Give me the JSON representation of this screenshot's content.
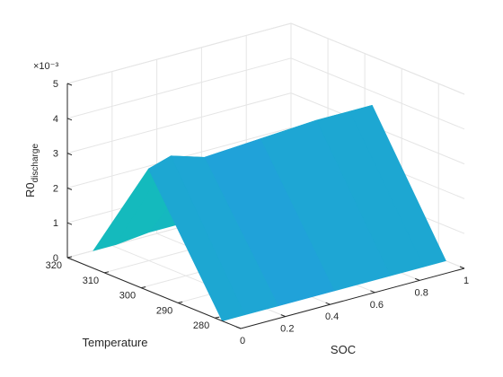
{
  "chart_data": {
    "type": "surface",
    "view": "3d",
    "xlabel": "SOC",
    "ylabel": "Temperature",
    "zlabel_main": "R0",
    "zlabel_sub": "discharge",
    "z_exponent": "×10⁻³",
    "xlim": [
      0,
      1
    ],
    "ylim": [
      273,
      320
    ],
    "zlim": [
      0,
      0.005
    ],
    "x_ticks": [
      "0",
      "0.2",
      "0.4",
      "0.6",
      "0.8",
      "1"
    ],
    "y_ticks": [
      "280",
      "290",
      "300",
      "310",
      "320"
    ],
    "z_ticks": [
      "0",
      "1",
      "2",
      "3",
      "4",
      "5"
    ],
    "grid": true,
    "colormap": "parula",
    "soc": [
      0,
      0.1,
      0.25,
      0.5,
      0.75,
      0.9,
      1
    ],
    "temperature": [
      278,
      298,
      313
    ],
    "r0_discharge": [
      [
        0.0,
        0.0,
        0.0,
        0.0,
        0.0,
        0.0,
        0.0
      ],
      [
        0.0035,
        0.0037,
        0.0034,
        0.0035,
        0.0036,
        0.0036,
        0.0036
      ],
      [
        0.0005,
        0.0005,
        0.0006,
        0.0006,
        0.0007,
        0.0007,
        0.0007
      ]
    ]
  },
  "colors": {
    "background": "#ffffff",
    "grid": "#e5e5e5",
    "axis": "#262626",
    "surface_low": "#3e26a8",
    "surface_mid": "#12beb9",
    "surface_high": "#f9fb0e"
  }
}
